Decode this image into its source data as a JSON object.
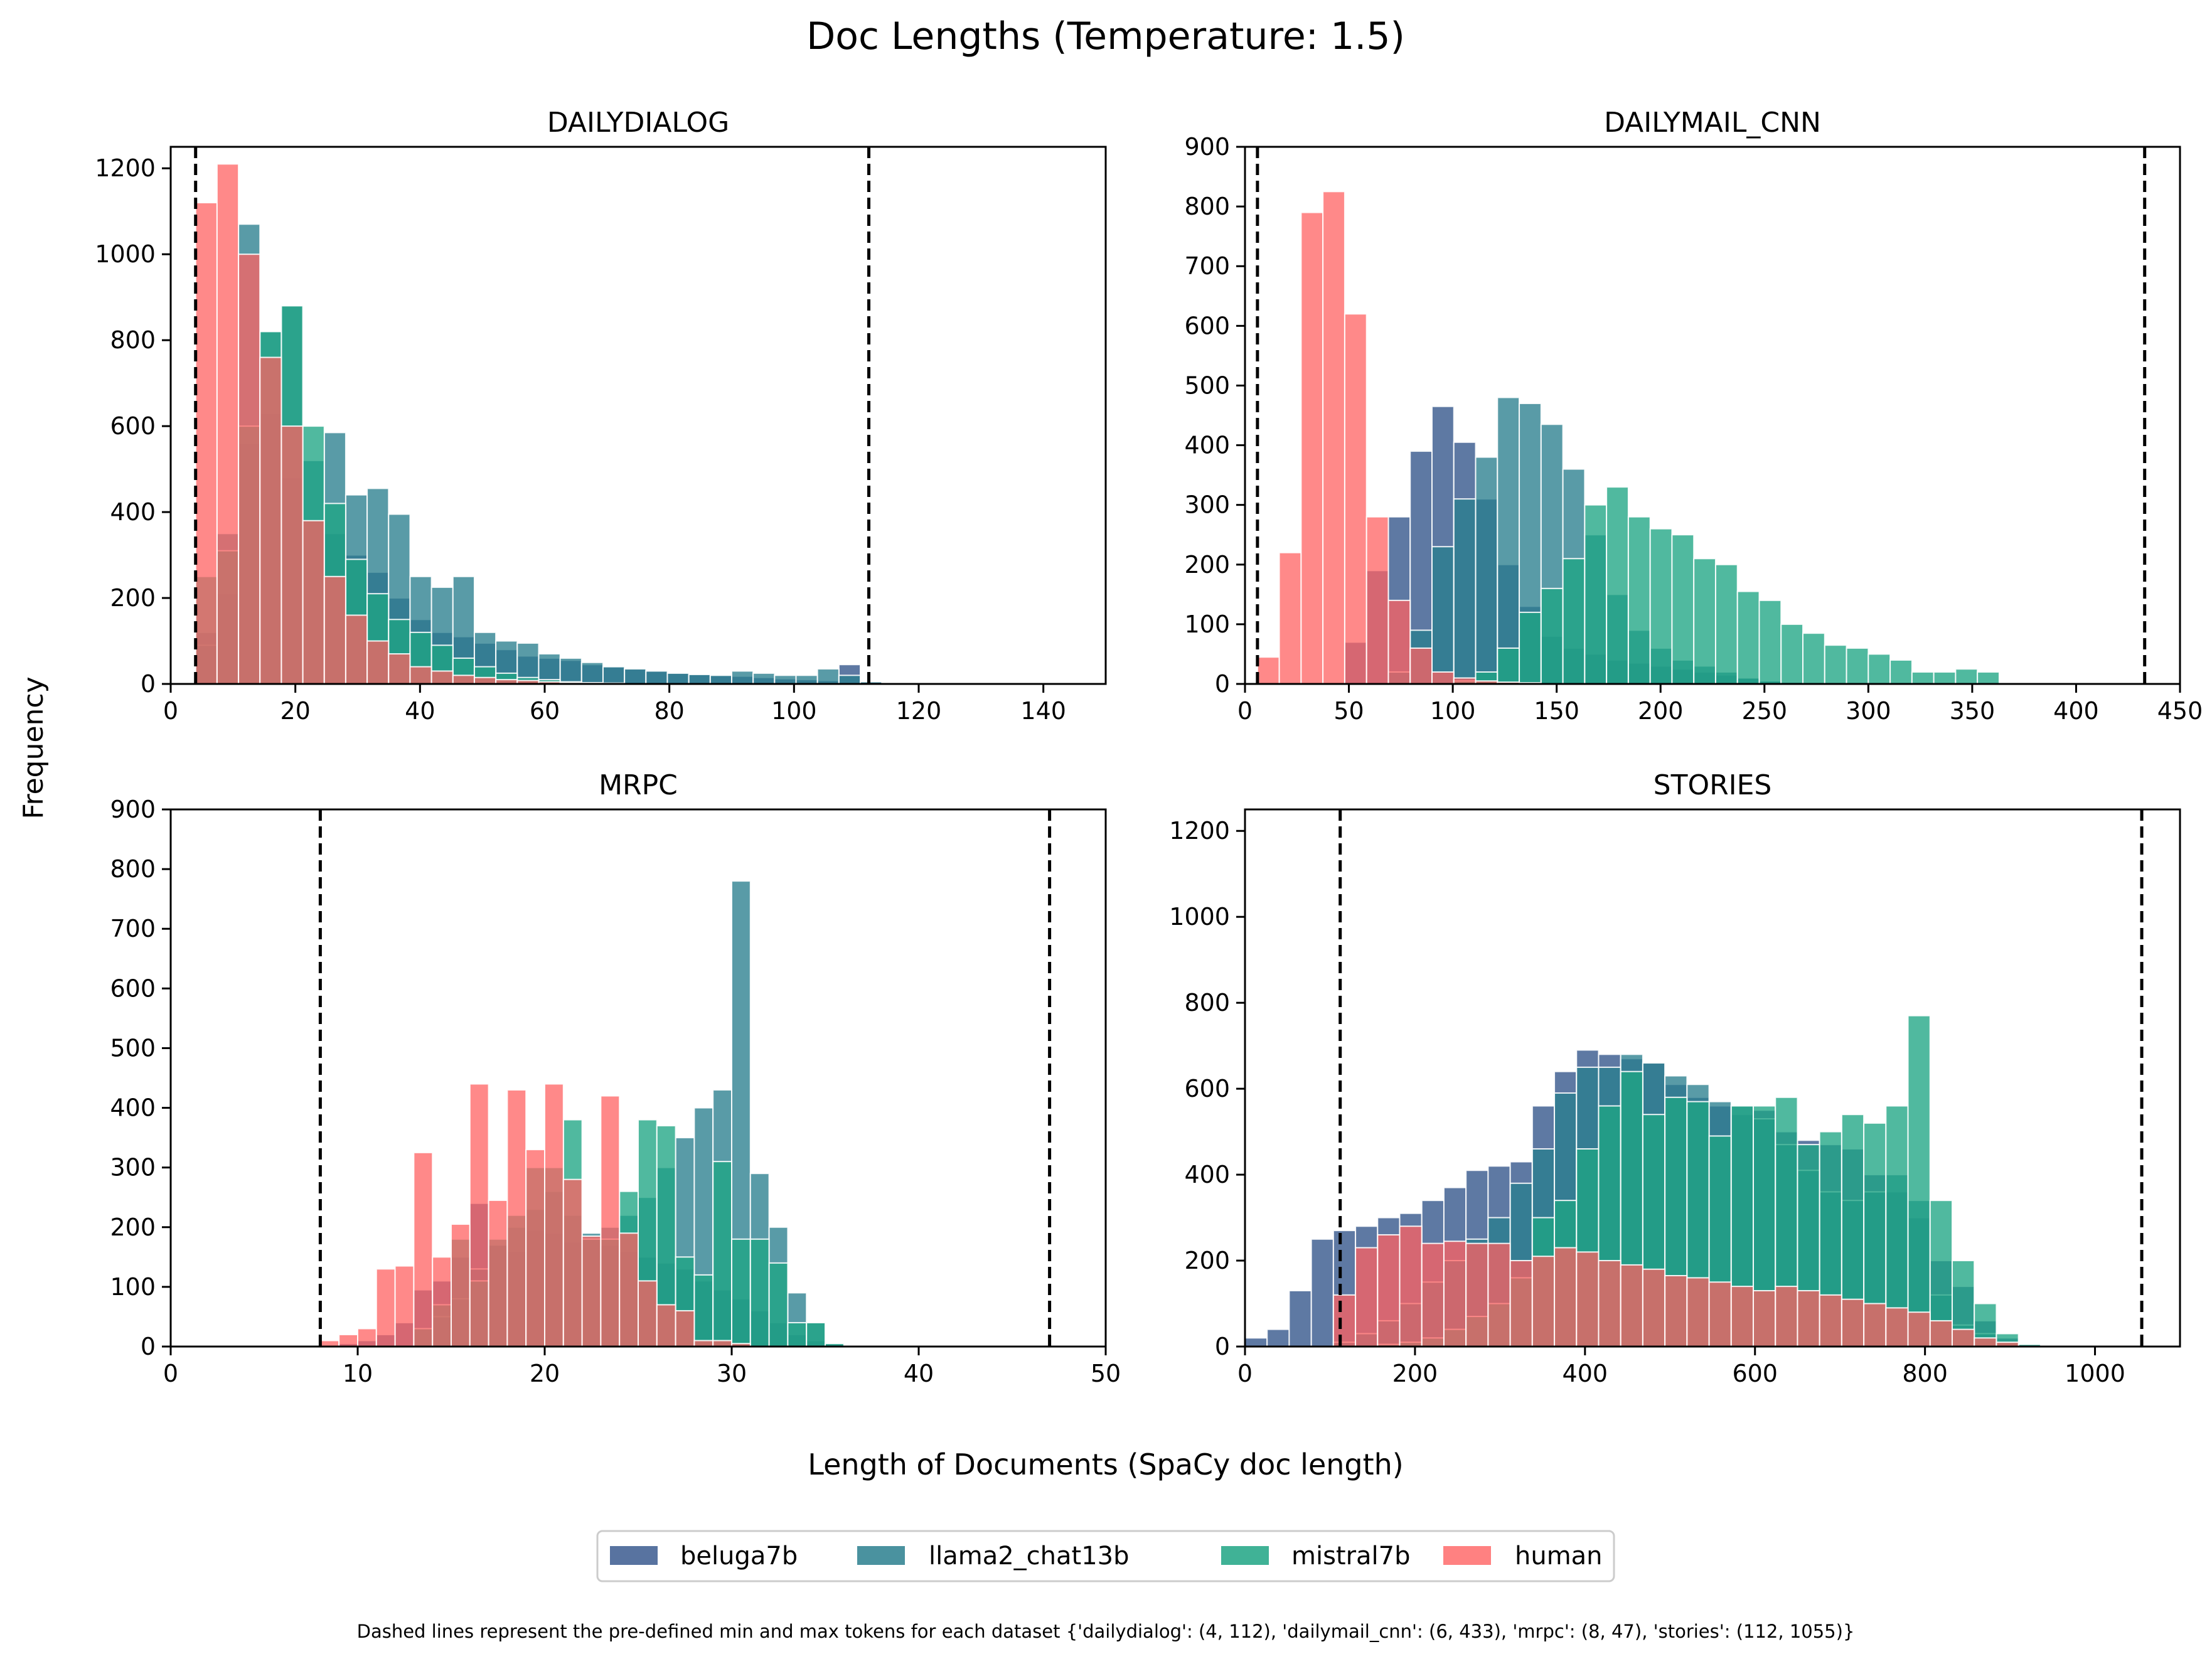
{
  "figure": {
    "title": "Doc Lengths (Temperature: 1.5)",
    "xlabel": "Length of Documents (SpaCy doc length)",
    "ylabel": "Frequency",
    "caption": "Dashed lines represent the pre-defined min and max tokens for each dataset {'dailydialog': (4, 112), 'dailymail_cnn': (6, 433), 'mrpc': (8, 47), 'stories': (112, 1055)}"
  },
  "legend": {
    "placement": "bottom-center",
    "items": [
      {
        "name": "beluga7b",
        "color": "#3b5b8f"
      },
      {
        "name": "llama2_chat13b",
        "color": "#2a7f8e"
      },
      {
        "name": "mistral7b",
        "color": "#1fa584"
      },
      {
        "name": "human",
        "color": "#ff6161"
      }
    ]
  },
  "chart_data": [
    {
      "type": "bar",
      "title": "DAILYDIALOG",
      "xlim": [
        0,
        150
      ],
      "ylim": [
        0,
        1250
      ],
      "xticks": [
        0,
        20,
        40,
        60,
        80,
        100,
        120,
        140
      ],
      "yticks": [
        0,
        200,
        400,
        600,
        800,
        1000,
        1200
      ],
      "dashed_lines": [
        4,
        112
      ],
      "series": [
        {
          "name": "beluga7b",
          "bin_start": 4,
          "bin_width": 3.44,
          "values": [
            120,
            210,
            560,
            630,
            480,
            380,
            350,
            300,
            260,
            200,
            150,
            120,
            110,
            95,
            80,
            65,
            60,
            55,
            45,
            40,
            35,
            30,
            25,
            22,
            20,
            18,
            15,
            12,
            10,
            8,
            45,
            5
          ]
        },
        {
          "name": "llama2_chat13b",
          "bin_start": 4,
          "bin_width": 3.44,
          "values": [
            90,
            350,
            1070,
            820,
            880,
            520,
            585,
            440,
            455,
            395,
            250,
            225,
            250,
            120,
            100,
            95,
            70,
            60,
            50,
            40,
            35,
            30,
            25,
            22,
            20,
            30,
            25,
            20,
            20,
            35,
            20,
            5
          ]
        },
        {
          "name": "mistral7b",
          "bin_start": 4,
          "bin_width": 3.44,
          "values": [
            250,
            310,
            600,
            820,
            880,
            600,
            420,
            290,
            210,
            150,
            120,
            90,
            60,
            40,
            25,
            15,
            10,
            5,
            3,
            2,
            0,
            0,
            0,
            0,
            0,
            0,
            0,
            0,
            0,
            0,
            0,
            0
          ]
        },
        {
          "name": "human",
          "bin_start": 4,
          "bin_width": 3.44,
          "values": [
            1120,
            1210,
            1000,
            760,
            600,
            380,
            250,
            160,
            100,
            70,
            40,
            30,
            20,
            15,
            10,
            8,
            5,
            3,
            2,
            0,
            0,
            0,
            0,
            0,
            0,
            0,
            0,
            0,
            0,
            0,
            0,
            0
          ]
        }
      ]
    },
    {
      "type": "bar",
      "title": "DAILYMAIL_CNN",
      "xlim": [
        0,
        450
      ],
      "ylim": [
        0,
        900
      ],
      "xticks": [
        0,
        50,
        100,
        150,
        200,
        250,
        300,
        350,
        400,
        450
      ],
      "yticks": [
        0,
        100,
        200,
        300,
        400,
        500,
        600,
        700,
        800,
        900
      ],
      "dashed_lines": [
        6,
        433
      ],
      "series": [
        {
          "name": "beluga7b",
          "bin_start": 6,
          "bin_width": 10.5,
          "values": [
            0,
            0,
            0,
            0,
            70,
            190,
            280,
            390,
            465,
            405,
            310,
            200,
            130,
            80,
            60,
            50,
            40,
            35,
            30,
            25,
            20,
            15,
            10,
            5,
            3,
            2,
            0,
            0,
            0,
            0,
            0,
            0,
            0,
            0
          ]
        },
        {
          "name": "llama2_chat13b",
          "bin_start": 6,
          "bin_width": 10.5,
          "values": [
            0,
            0,
            0,
            0,
            0,
            0,
            20,
            90,
            230,
            310,
            380,
            480,
            470,
            435,
            360,
            250,
            150,
            90,
            60,
            40,
            30,
            20,
            10,
            5,
            0,
            0,
            0,
            0,
            0,
            0,
            0,
            0,
            0,
            0
          ]
        },
        {
          "name": "mistral7b",
          "bin_start": 6,
          "bin_width": 10.5,
          "values": [
            0,
            0,
            0,
            0,
            0,
            0,
            0,
            0,
            0,
            5,
            20,
            60,
            120,
            160,
            210,
            300,
            330,
            280,
            260,
            250,
            210,
            200,
            155,
            140,
            100,
            85,
            65,
            60,
            50,
            40,
            20,
            20,
            25,
            20
          ]
        },
        {
          "name": "human",
          "bin_start": 6,
          "bin_width": 10.5,
          "values": [
            45,
            220,
            790,
            825,
            620,
            280,
            140,
            60,
            20,
            10,
            5,
            3,
            2,
            0,
            0,
            0,
            0,
            0,
            0,
            0,
            0,
            0,
            0,
            0,
            0,
            0,
            0,
            0,
            0,
            0,
            0,
            0,
            0,
            0
          ]
        }
      ]
    },
    {
      "type": "bar",
      "title": "MRPC",
      "xlim": [
        0,
        50
      ],
      "ylim": [
        0,
        900
      ],
      "xticks": [
        0,
        10,
        20,
        30,
        40,
        50
      ],
      "yticks": [
        0,
        100,
        200,
        300,
        400,
        500,
        600,
        700,
        800,
        900
      ],
      "dashed_lines": [
        8,
        47
      ],
      "series": [
        {
          "name": "beluga7b",
          "bin_start": 8,
          "bin_width": 1,
          "values": [
            0,
            5,
            10,
            20,
            40,
            95,
            110,
            150,
            240,
            170,
            160,
            195,
            190,
            175,
            180,
            170,
            160,
            150,
            140,
            130,
            110,
            95,
            80,
            60,
            40,
            20,
            10,
            5
          ]
        },
        {
          "name": "llama2_chat13b",
          "bin_start": 8,
          "bin_width": 1,
          "values": [
            0,
            0,
            0,
            0,
            0,
            0,
            50,
            80,
            130,
            170,
            200,
            230,
            260,
            220,
            190,
            200,
            220,
            250,
            300,
            350,
            400,
            430,
            780,
            290,
            200,
            90,
            40,
            5
          ]
        },
        {
          "name": "mistral7b",
          "bin_start": 8,
          "bin_width": 1,
          "values": [
            0,
            0,
            0,
            0,
            0,
            30,
            70,
            180,
            110,
            180,
            220,
            300,
            300,
            380,
            180,
            180,
            260,
            380,
            370,
            150,
            120,
            310,
            180,
            180,
            140,
            40,
            40,
            5
          ]
        },
        {
          "name": "human",
          "bin_start": 8,
          "bin_width": 1,
          "values": [
            10,
            20,
            30,
            130,
            135,
            325,
            150,
            205,
            440,
            245,
            430,
            330,
            440,
            280,
            185,
            420,
            190,
            110,
            70,
            60,
            10,
            10,
            5,
            0,
            0,
            0,
            0,
            0
          ]
        }
      ]
    },
    {
      "type": "bar",
      "title": "STORIES",
      "xlim": [
        0,
        1100
      ],
      "ylim": [
        0,
        1250
      ],
      "xticks": [
        0,
        200,
        400,
        600,
        800,
        1000
      ],
      "yticks": [
        0,
        200,
        400,
        600,
        800,
        1000,
        1200
      ],
      "dashed_lines": [
        112,
        1055
      ],
      "series": [
        {
          "name": "beluga7b",
          "bin_start": 0,
          "bin_width": 26,
          "values": [
            20,
            40,
            130,
            250,
            270,
            280,
            300,
            310,
            340,
            370,
            410,
            420,
            430,
            560,
            640,
            690,
            680,
            670,
            660,
            610,
            580,
            560,
            540,
            550,
            500,
            480,
            470,
            460,
            400,
            360,
            300,
            200,
            140,
            60,
            20,
            5
          ]
        },
        {
          "name": "llama2_chat13b",
          "bin_start": 0,
          "bin_width": 26,
          "values": [
            0,
            0,
            0,
            0,
            10,
            30,
            60,
            100,
            150,
            200,
            250,
            300,
            380,
            460,
            590,
            650,
            650,
            680,
            660,
            630,
            610,
            570,
            560,
            530,
            470,
            410,
            360,
            340,
            360,
            400,
            340,
            120,
            50,
            30,
            10,
            0
          ]
        },
        {
          "name": "mistral7b",
          "bin_start": 0,
          "bin_width": 26,
          "values": [
            0,
            0,
            0,
            0,
            0,
            0,
            5,
            10,
            20,
            40,
            70,
            100,
            160,
            300,
            340,
            460,
            560,
            640,
            540,
            580,
            570,
            490,
            560,
            560,
            580,
            470,
            500,
            540,
            520,
            560,
            770,
            340,
            200,
            100,
            30,
            5
          ]
        },
        {
          "name": "human",
          "bin_start": 0,
          "bin_width": 26,
          "values": [
            0,
            0,
            0,
            0,
            120,
            230,
            260,
            280,
            240,
            245,
            240,
            240,
            200,
            210,
            230,
            220,
            200,
            190,
            180,
            165,
            160,
            150,
            140,
            130,
            140,
            130,
            120,
            110,
            100,
            90,
            80,
            60,
            40,
            20,
            10,
            0
          ]
        }
      ]
    }
  ]
}
